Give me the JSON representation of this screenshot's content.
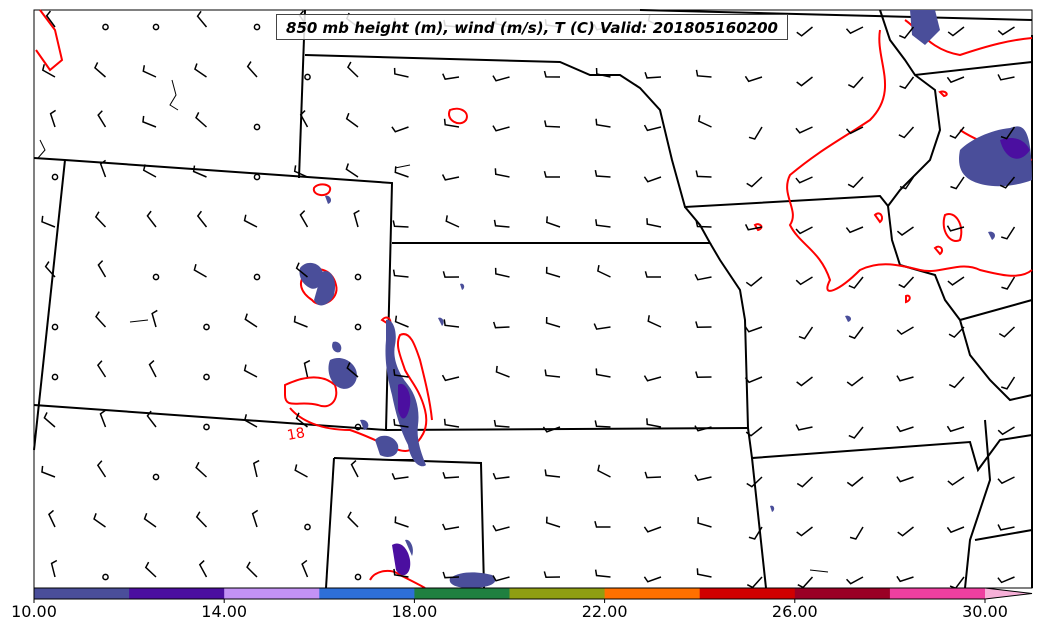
{
  "title": "850 mb height (m), wind (m/s), T (C) Valid: 201805160200",
  "contour_label": "18",
  "colorbar": {
    "ticks": [
      "10.00",
      "14.00",
      "18.00",
      "22.00",
      "26.00",
      "30.00"
    ],
    "colors": [
      "#4a4e9a",
      "#4b0fa0",
      "#c392f5",
      "#2e6fd8",
      "#1f8040",
      "#8f9e12",
      "#ff7000",
      "#d10000",
      "#9a0025",
      "#ee3fa0",
      "#f7b0d8"
    ]
  },
  "colors": {
    "state_lines": "#000000",
    "isotherm": "#ff0000",
    "precip_fill": "#4a4e9a",
    "precip_dark": "#4b0fa0"
  }
}
